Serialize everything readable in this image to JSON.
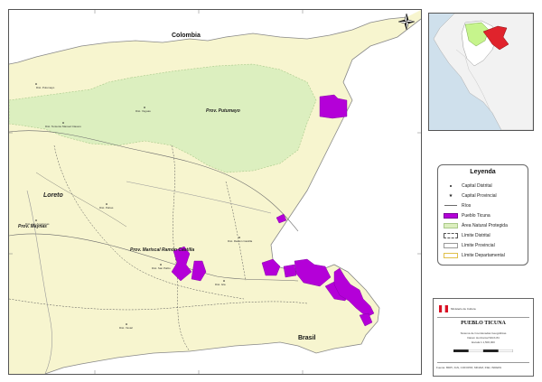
{
  "map": {
    "countries": {
      "colombia": "Colombia",
      "brasil": "Brasil"
    },
    "department": "Loreto",
    "provinces": {
      "putumayo": "Prov. Putumayo",
      "maynas": "Prov. Maynas",
      "ramon_castilla": "Prov. Mariscal Ramón Castilla"
    },
    "places": {
      "putumayo_district": "Dist. Putumayo",
      "teniente_tm": "Dist. Teniente Manuel Clavero",
      "yaguas": "Dist. Yaguas",
      "pebas": "Dist. Pebas",
      "las_amazonas": "Dist. Las Amazonas",
      "ramon_castilla_district": "Dist. Ramón Castilla",
      "san_pablo": "Dist. San Pablo",
      "yavari": "Dist. Yavari",
      "island_label": "Dist. Isla"
    },
    "colors": {
      "territory": "#f7f5cf",
      "protected_area": "#dcefbf",
      "pueblo_ticuna": "#b400d8",
      "outside": "#ffffff",
      "rivers": "#6a6a6a"
    }
  },
  "legend": {
    "title": "Leyenda",
    "items": [
      {
        "label": "Capital Distrital",
        "symbol": "dot"
      },
      {
        "label": "Capital Provincial",
        "symbol": "star"
      },
      {
        "label": "Ríos",
        "symbol": "river"
      },
      {
        "label": "Pueblo Ticuna",
        "symbol": "fill-purple"
      },
      {
        "label": "Área Natural Protegida",
        "symbol": "fill-green"
      },
      {
        "label": "Límite Distrital",
        "symbol": "dash"
      },
      {
        "label": "Límite Provincial",
        "symbol": "box-grey"
      },
      {
        "label": "Límite Departamental",
        "symbol": "box-yellow"
      }
    ]
  },
  "title_block": {
    "ministry": "Ministerio de Cultura",
    "title": "PUEBLO TICUNA",
    "meta": [
      "Sistema de Coordenadas Geográficas",
      "Datum Horizontal WGS 84",
      "Escala 1:1,500,000"
    ],
    "footer": "Fuente: BDPI, IGN, COFOPRI, MINAM, INEI, INDEPA"
  }
}
